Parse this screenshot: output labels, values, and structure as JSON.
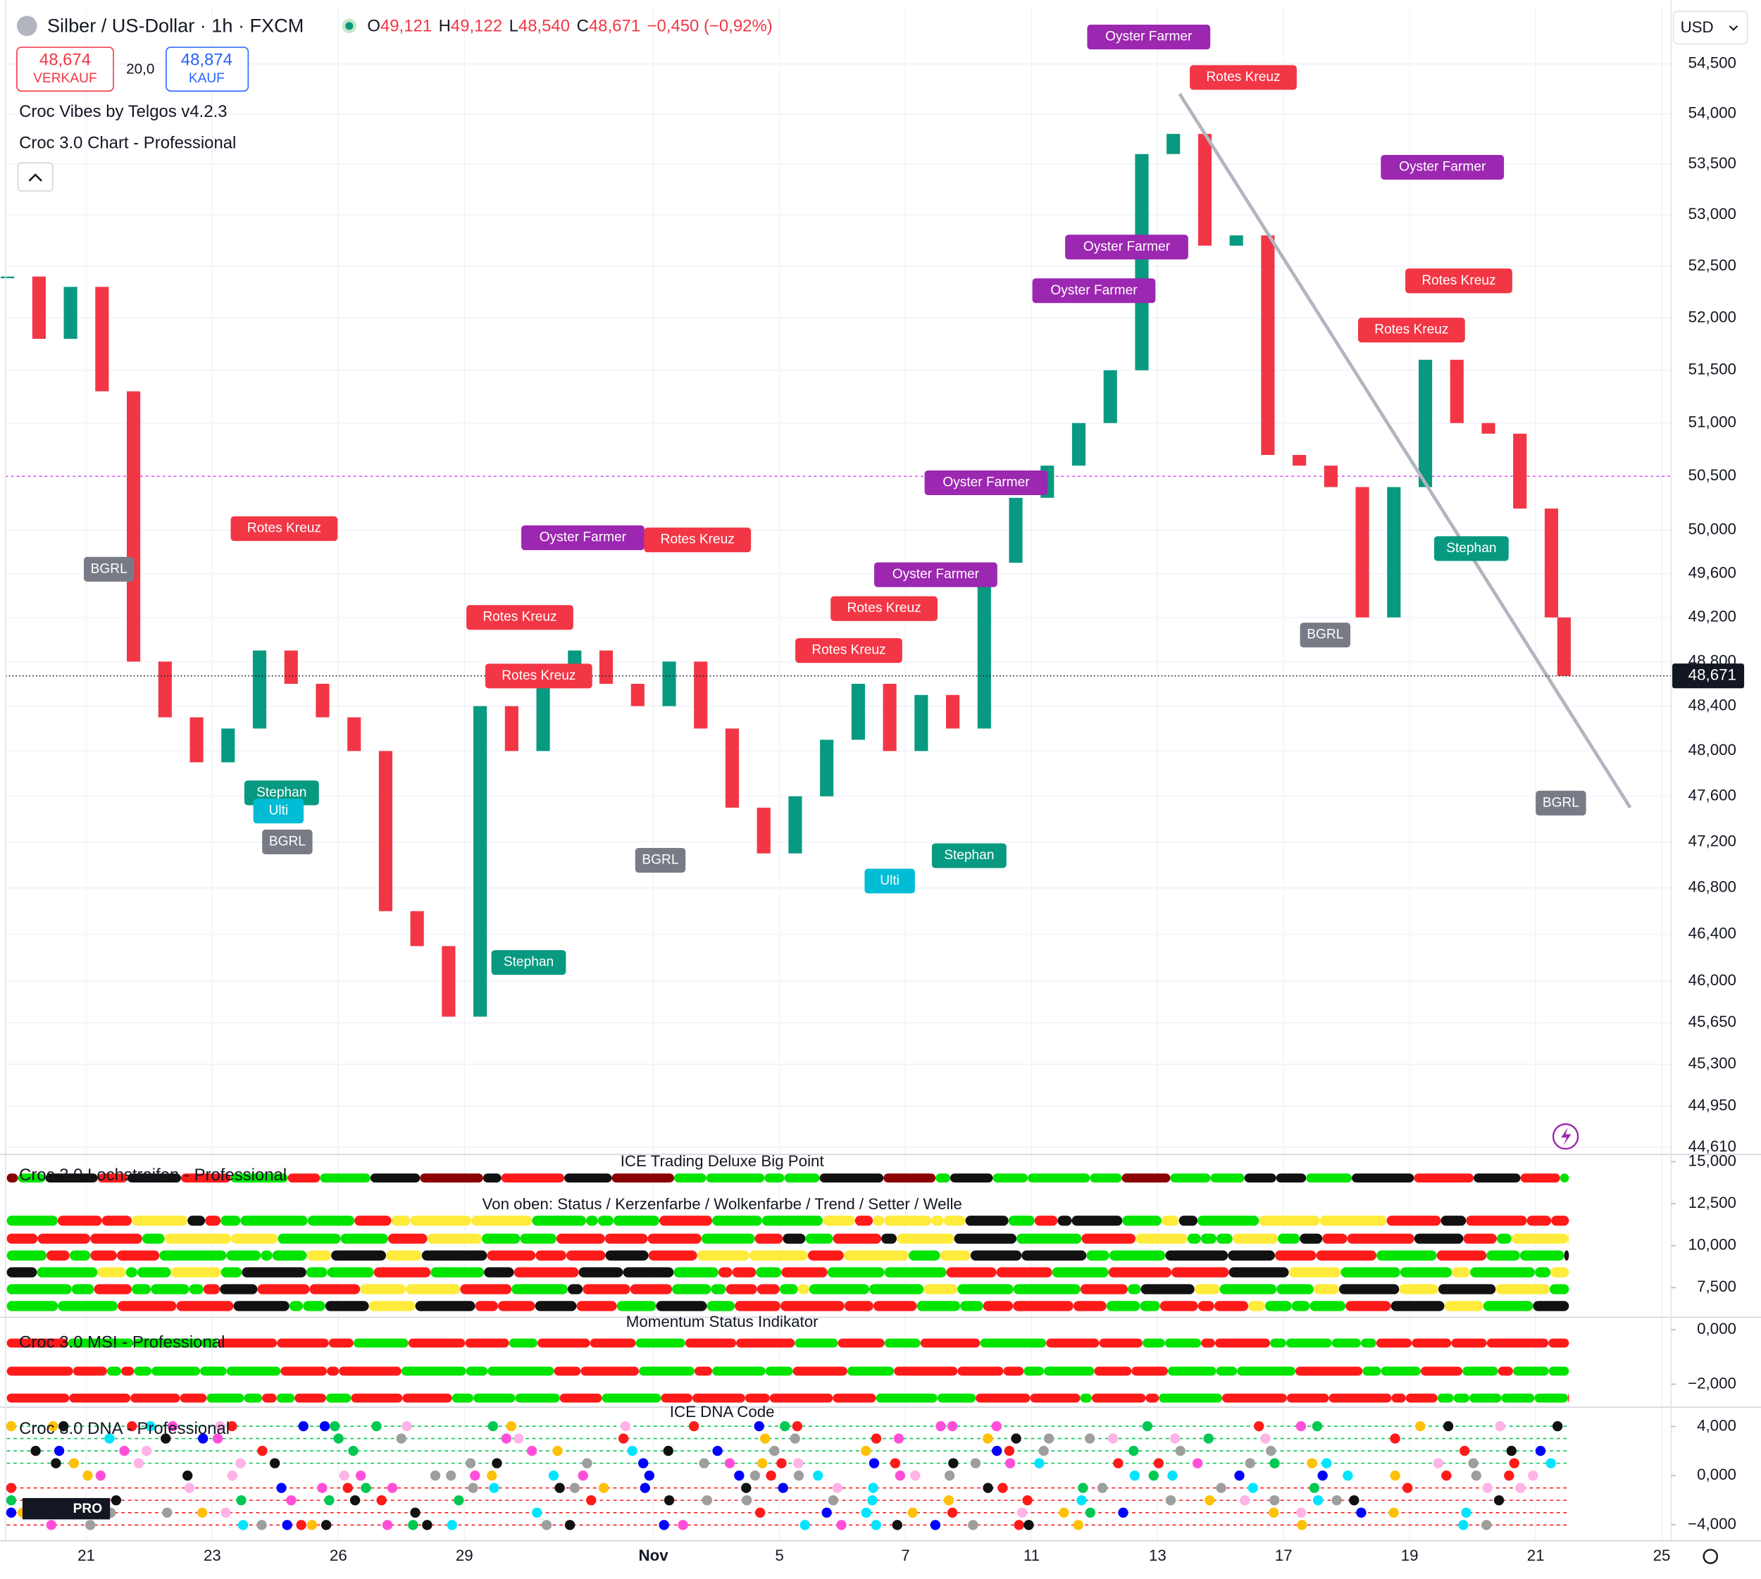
{
  "header": {
    "symbol": "Silber / US-Dollar · 1h · FXCM",
    "open_label": "O",
    "open": "49,121",
    "high_label": "H",
    "high": "49,122",
    "low_label": "L",
    "low": "48,540",
    "close_label": "C",
    "close": "48,671",
    "change": "−0,450 (−0,92%)"
  },
  "trade": {
    "sell_price": "48,674",
    "sell_label": "VERKAUF",
    "spread": "20,0",
    "buy_price": "48,874",
    "buy_label": "KAUF"
  },
  "indicators": [
    "Croc Vibes by Telgos v4.2.3",
    "Croc 3.0 Chart - Professional"
  ],
  "currency": "USD",
  "logo": "PRO",
  "chart_data": {
    "type": "candlestick",
    "x": [
      -1.25,
      -0.75,
      -0.25,
      0.25,
      0.75,
      1.25,
      1.75,
      2.25,
      2.75,
      3.25,
      3.75,
      4.25,
      4.75,
      5.25,
      5.75,
      6.25,
      6.75,
      7.25,
      7.75,
      8.25,
      8.75,
      9.25,
      9.75,
      10.25,
      10.75,
      11.25,
      11.75,
      12.25,
      12.75,
      13.25,
      13.75,
      14.25,
      14.75,
      15.25,
      15.75,
      16.25,
      16.75,
      17.25,
      17.75,
      18.25,
      18.75,
      19.25,
      19.75,
      20.25,
      20.75,
      21.25,
      21.75,
      22.25,
      22.75,
      23.25,
      23.45
    ],
    "values": [
      52400,
      51800,
      52300,
      51300,
      48800,
      48300,
      47900,
      48200,
      48900,
      48600,
      48300,
      48000,
      46600,
      46300,
      45700,
      48400,
      48000,
      48700,
      48900,
      48600,
      48400,
      48800,
      48200,
      47500,
      47100,
      47600,
      48100,
      48600,
      48000,
      48500,
      48200,
      49700,
      50300,
      50600,
      51000,
      51500,
      53600,
      53800,
      52700,
      52800,
      50700,
      50600,
      50400,
      49200,
      50400,
      51600,
      51000,
      50900,
      50200,
      49200,
      48671
    ],
    "up_color": "#089981",
    "down_color": "#f23645",
    "xlim": [
      -1.28,
      25.15
    ],
    "xticks": [
      {
        "value": 0,
        "label": "21"
      },
      {
        "value": 2,
        "label": "23"
      },
      {
        "value": 4,
        "label": "26"
      },
      {
        "value": 6,
        "label": "29"
      },
      {
        "value": 9,
        "label": "Nov"
      },
      {
        "value": 11,
        "label": "5"
      },
      {
        "value": 13,
        "label": "7"
      },
      {
        "value": 15,
        "label": "11"
      },
      {
        "value": 17,
        "label": "13"
      },
      {
        "value": 19,
        "label": "17"
      },
      {
        "value": 21,
        "label": "19"
      },
      {
        "value": 23,
        "label": "21"
      },
      {
        "value": 25,
        "label": "25"
      }
    ],
    "ylim": [
      44560,
      55090
    ],
    "log_scale": true,
    "grid": true,
    "yticks": [
      {
        "value": 54500,
        "label": "54,500"
      },
      {
        "value": 54000,
        "label": "54,000"
      },
      {
        "value": 53500,
        "label": "53,500"
      },
      {
        "value": 53000,
        "label": "53,000"
      },
      {
        "value": 52500,
        "label": "52,500"
      },
      {
        "value": 52000,
        "label": "52,000"
      },
      {
        "value": 51500,
        "label": "51,500"
      },
      {
        "value": 51000,
        "label": "51,000"
      },
      {
        "value": 50500,
        "label": "50,500"
      },
      {
        "value": 50000,
        "label": "50,000"
      },
      {
        "value": 49600,
        "label": "49,600"
      },
      {
        "value": 49200,
        "label": "49,200"
      },
      {
        "value": 48800,
        "label": "48,800"
      },
      {
        "value": 48400,
        "label": "48,400"
      },
      {
        "value": 48000,
        "label": "48,000"
      },
      {
        "value": 47600,
        "label": "47,600"
      },
      {
        "value": 47200,
        "label": "47,200"
      },
      {
        "value": 46800,
        "label": "46,800"
      },
      {
        "value": 46400,
        "label": "46,400"
      },
      {
        "value": 46000,
        "label": "46,000"
      },
      {
        "value": 45650,
        "label": "45,650"
      },
      {
        "value": 45300,
        "label": "45,300"
      },
      {
        "value": 44950,
        "label": "44,950"
      },
      {
        "value": 44610,
        "label": "44,610"
      }
    ],
    "last_price": {
      "value": 48671,
      "label": "48,671"
    },
    "alert_level": 50500,
    "trendline": {
      "x": [
        17.35,
        24.5
      ],
      "values": [
        54200,
        47500
      ],
      "color": "#b2b5be"
    },
    "annotations": [
      {
        "text": "Oyster Farmer",
        "x": 16.86,
        "y": 54772,
        "color": "#9c27b0"
      },
      {
        "text": "Rotes Kreuz",
        "x": 18.36,
        "y": 54364,
        "color": "#f23645"
      },
      {
        "text": "Oyster Farmer",
        "x": 21.52,
        "y": 53469,
        "color": "#9c27b0"
      },
      {
        "text": "Oyster Farmer",
        "x": 16.51,
        "y": 52686,
        "color": "#9c27b0"
      },
      {
        "text": "Oyster Farmer",
        "x": 15.99,
        "y": 52263,
        "color": "#9c27b0"
      },
      {
        "text": "Rotes Kreuz",
        "x": 21.78,
        "y": 52358,
        "color": "#f23645"
      },
      {
        "text": "Rotes Kreuz",
        "x": 21.03,
        "y": 51884,
        "color": "#f23645"
      },
      {
        "text": "Oyster Farmer",
        "x": 14.28,
        "y": 50440,
        "color": "#9c27b0"
      },
      {
        "text": "Rotes Kreuz",
        "x": 3.14,
        "y": 50014,
        "color": "#f23645"
      },
      {
        "text": "Oyster Farmer",
        "x": 7.88,
        "y": 49930,
        "color": "#9c27b0"
      },
      {
        "text": "Rotes Kreuz",
        "x": 9.7,
        "y": 49910,
        "color": "#f23645"
      },
      {
        "text": "Oyster Farmer",
        "x": 13.48,
        "y": 49590,
        "color": "#9c27b0"
      },
      {
        "text": "Rotes Kreuz",
        "x": 12.66,
        "y": 49280,
        "color": "#f23645"
      },
      {
        "text": "Rotes Kreuz",
        "x": 6.88,
        "y": 49200,
        "color": "#f23645"
      },
      {
        "text": "Rotes Kreuz",
        "x": 12.1,
        "y": 48900,
        "color": "#f23645"
      },
      {
        "text": "Rotes Kreuz",
        "x": 7.18,
        "y": 48670,
        "color": "#f23645"
      },
      {
        "text": "Stephan",
        "x": 21.98,
        "y": 49830,
        "color": "#089981"
      },
      {
        "text": "BGRL",
        "x": 0.36,
        "y": 49640,
        "color": "#787b86"
      },
      {
        "text": "BGRL",
        "x": 19.66,
        "y": 49040,
        "color": "#787b86"
      },
      {
        "text": "Stephan",
        "x": 3.1,
        "y": 47630,
        "color": "#089981"
      },
      {
        "text": "Ulti",
        "x": 3.05,
        "y": 47470,
        "color": "#00bcd4"
      },
      {
        "text": "BGRL",
        "x": 3.19,
        "y": 47200,
        "color": "#787b86"
      },
      {
        "text": "BGRL",
        "x": 9.11,
        "y": 47040,
        "color": "#787b86"
      },
      {
        "text": "Stephan",
        "x": 14.01,
        "y": 47080,
        "color": "#089981"
      },
      {
        "text": "Ulti",
        "x": 12.75,
        "y": 46860,
        "color": "#00bcd4"
      },
      {
        "text": "Stephan",
        "x": 7.02,
        "y": 46160,
        "color": "#089981"
      },
      {
        "text": "BGRL",
        "x": 23.4,
        "y": 47540,
        "color": "#787b86"
      }
    ]
  },
  "panes": [
    {
      "title": "Croc 3.0 Lochstreifen - Professional",
      "subtitle": "ICE Trading Deluxe Big Point",
      "caption": "Von oben: Status / Kerzenfarbe / Wolkenfarbe / Trend / Setter / Welle",
      "ylim": [
        5800,
        15300
      ],
      "yticks": [
        {
          "value": 15000,
          "label": "15,000"
        },
        {
          "value": 12500,
          "label": "12,500"
        },
        {
          "value": 10000,
          "label": "10,000"
        },
        {
          "value": 7500,
          "label": "7,500"
        }
      ]
    },
    {
      "title": "Croc 3.0 MSI - Professional",
      "subtitle": "Momentum Status Indikator",
      "ylim": [
        -2800,
        375
      ],
      "yticks": [
        {
          "value": 0,
          "label": "0,000"
        },
        {
          "value": -2000,
          "label": "−2,000"
        }
      ]
    },
    {
      "title": "Croc 3.0 DNA - Professional",
      "subtitle": "ICE DNA Code",
      "ylim": [
        -5300,
        5400
      ],
      "yticks": [
        {
          "value": 4000,
          "label": "4,000"
        },
        {
          "value": 0,
          "label": "0,000"
        },
        {
          "value": -4000,
          "label": "−4,000"
        }
      ]
    }
  ]
}
